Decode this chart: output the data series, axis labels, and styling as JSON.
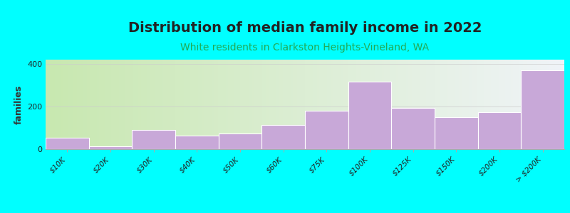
{
  "title": "Distribution of median family income in 2022",
  "subtitle": "White residents in Clarkston Heights-Vineland, WA",
  "ylabel": "families",
  "categories": [
    "$10K",
    "$20K",
    "$30K",
    "$40K",
    "$50K",
    "$60K",
    "$75K",
    "$100K",
    "$125K",
    "$150K",
    "$200K",
    "> $200K"
  ],
  "values": [
    55,
    15,
    90,
    65,
    75,
    115,
    180,
    315,
    195,
    150,
    175,
    370
  ],
  "bar_color": "#c8a8d8",
  "bar_edge_color": "#ffffff",
  "title_color": "#222222",
  "subtitle_color": "#22aa55",
  "ylabel_color": "#333333",
  "background_color": "#00ffff",
  "plot_bg_left": "#c8e8b0",
  "plot_bg_right": "#f0f4f8",
  "ylim": [
    0,
    420
  ],
  "yticks": [
    0,
    200,
    400
  ],
  "title_fontsize": 14,
  "subtitle_fontsize": 10,
  "ylabel_fontsize": 9
}
